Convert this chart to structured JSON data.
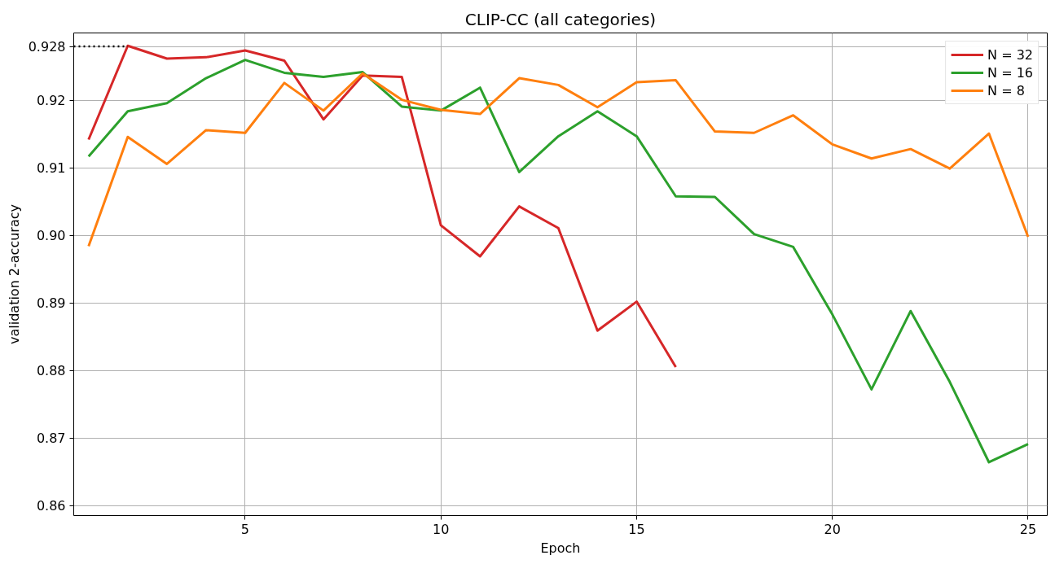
{
  "chart_data": {
    "type": "line",
    "title": "CLIP-CC (all categories)",
    "xlabel": "Epoch",
    "ylabel": "validation 2-accuracy",
    "x": [
      1,
      2,
      3,
      4,
      5,
      6,
      7,
      8,
      9,
      10,
      11,
      12,
      13,
      14,
      15,
      16,
      17,
      18,
      19,
      20,
      21,
      22,
      23,
      24,
      25
    ],
    "series": [
      {
        "name": "N = 32",
        "color": "#d62728",
        "values": [
          0.9142,
          0.9281,
          0.9262,
          0.9264,
          0.9274,
          0.9259,
          0.9172,
          0.9237,
          0.9235,
          0.9015,
          0.8969,
          0.9043,
          0.9011,
          0.8859,
          0.8902,
          0.8805,
          null,
          null,
          null,
          null,
          null,
          null,
          null,
          null,
          null
        ]
      },
      {
        "name": "N = 16",
        "color": "#2ca02c",
        "values": [
          0.9117,
          0.9184,
          0.9196,
          0.9233,
          0.926,
          0.9241,
          0.9235,
          0.9242,
          0.9191,
          0.9185,
          0.9219,
          0.9094,
          0.9147,
          0.9184,
          0.9147,
          0.9058,
          0.9057,
          0.9002,
          0.8983,
          0.8883,
          0.8772,
          0.8888,
          0.8783,
          0.8664,
          0.8691
        ]
      },
      {
        "name": "N = 8",
        "color": "#ff7f0e",
        "values": [
          0.8984,
          0.9146,
          0.9106,
          0.9156,
          0.9152,
          0.9226,
          0.9185,
          0.924,
          0.9201,
          0.9186,
          0.918,
          0.9233,
          0.9223,
          0.919,
          0.9227,
          0.923,
          0.9154,
          0.9152,
          0.9178,
          0.9135,
          0.9114,
          0.9128,
          0.9099,
          0.9151,
          0.8998
        ]
      },
      {
        "type": "line",
        "color": "#000000",
        "line_style": "dotted",
        "x": [
          0.62,
          2
        ],
        "values": [
          0.928,
          0.928
        ]
      }
    ],
    "xlim": [
      0.62,
      25.49
    ],
    "ylim": [
      0.8585,
      0.93
    ],
    "xticks": [
      5,
      10,
      15,
      20,
      25
    ],
    "yticks": [
      {
        "value": 0.86,
        "label": "0.86"
      },
      {
        "value": 0.87,
        "label": "0.87"
      },
      {
        "value": 0.88,
        "label": "0.88"
      },
      {
        "value": 0.89,
        "label": "0.89"
      },
      {
        "value": 0.9,
        "label": "0.90"
      },
      {
        "value": 0.91,
        "label": "0.91"
      },
      {
        "value": 0.92,
        "label": "0.92"
      },
      {
        "value": 0.928,
        "label": "0.928"
      }
    ],
    "grid": true,
    "legend": "top right",
    "line_style": "solid"
  }
}
